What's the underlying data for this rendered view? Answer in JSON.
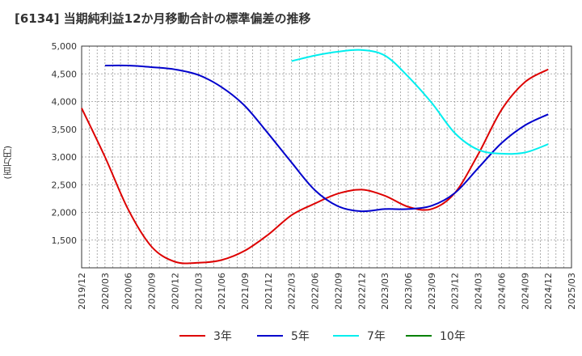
{
  "chart_data": {
    "type": "line",
    "title": "[6134]  当期純利益12か月移動合計の標準偏差の推移",
    "ylabel": "(百万円)",
    "xlabel": "",
    "ylim": [
      1000,
      5000
    ],
    "yticks": [
      1500,
      2000,
      2500,
      3000,
      3500,
      4000,
      4500,
      5000
    ],
    "ytick_labels": [
      "1,500",
      "2,000",
      "2,500",
      "3,000",
      "3,500",
      "4,000",
      "4,500",
      "5,000"
    ],
    "x_tick_labels": [
      "2019/12",
      "2020/03",
      "2020/06",
      "2020/09",
      "2020/12",
      "2021/03",
      "2021/06",
      "2021/09",
      "2021/12",
      "2022/03",
      "2022/06",
      "2022/09",
      "2022/12",
      "2023/03",
      "2023/06",
      "2023/09",
      "2023/12",
      "2024/03",
      "2024/06",
      "2024/09",
      "2024/12",
      "2025/03"
    ],
    "grid": true,
    "legend_position": "bottom",
    "series": [
      {
        "name": "3年",
        "color": "#dd0000",
        "points": [
          [
            "2019/12",
            3880
          ],
          [
            "2020/03",
            3000
          ],
          [
            "2020/06",
            2050
          ],
          [
            "2020/09",
            1380
          ],
          [
            "2020/12",
            1110
          ],
          [
            "2021/03",
            1090
          ],
          [
            "2021/06",
            1140
          ],
          [
            "2021/09",
            1310
          ],
          [
            "2021/12",
            1600
          ],
          [
            "2022/03",
            1950
          ],
          [
            "2022/06",
            2160
          ],
          [
            "2022/09",
            2340
          ],
          [
            "2022/12",
            2410
          ],
          [
            "2023/03",
            2300
          ],
          [
            "2023/06",
            2100
          ],
          [
            "2023/09",
            2060
          ],
          [
            "2023/12",
            2350
          ],
          [
            "2024/03",
            3050
          ],
          [
            "2024/06",
            3850
          ],
          [
            "2024/09",
            4350
          ],
          [
            "2024/12",
            4580
          ]
        ]
      },
      {
        "name": "5年",
        "color": "#0000cc",
        "points": [
          [
            "2020/03",
            4650
          ],
          [
            "2020/06",
            4650
          ],
          [
            "2020/09",
            4620
          ],
          [
            "2020/12",
            4580
          ],
          [
            "2021/03",
            4480
          ],
          [
            "2021/06",
            4260
          ],
          [
            "2021/09",
            3920
          ],
          [
            "2021/12",
            3420
          ],
          [
            "2022/03",
            2900
          ],
          [
            "2022/06",
            2400
          ],
          [
            "2022/09",
            2110
          ],
          [
            "2022/12",
            2020
          ],
          [
            "2023/03",
            2060
          ],
          [
            "2023/06",
            2060
          ],
          [
            "2023/09",
            2120
          ],
          [
            "2023/12",
            2350
          ],
          [
            "2024/03",
            2800
          ],
          [
            "2024/06",
            3250
          ],
          [
            "2024/09",
            3570
          ],
          [
            "2024/12",
            3770
          ]
        ]
      },
      {
        "name": "7年",
        "color": "#00eeee",
        "points": [
          [
            "2022/03",
            4730
          ],
          [
            "2022/06",
            4830
          ],
          [
            "2022/09",
            4900
          ],
          [
            "2022/12",
            4930
          ],
          [
            "2023/03",
            4830
          ],
          [
            "2023/06",
            4450
          ],
          [
            "2023/09",
            3980
          ],
          [
            "2023/12",
            3430
          ],
          [
            "2024/03",
            3130
          ],
          [
            "2024/06",
            3060
          ],
          [
            "2024/09",
            3080
          ],
          [
            "2024/12",
            3230
          ]
        ]
      },
      {
        "name": "10年",
        "color": "#008000",
        "points": []
      }
    ]
  }
}
